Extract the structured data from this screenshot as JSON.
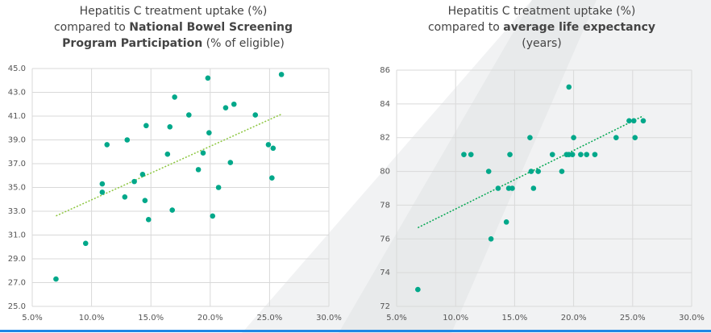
{
  "chart_data": [
    {
      "type": "scatter",
      "title_lines": [
        [
          {
            "text": "Hepatitis C treatment uptake (%)",
            "bold": false
          }
        ],
        [
          {
            "text": "compared to ",
            "bold": false
          },
          {
            "text": "National Bowel Screening",
            "bold": true
          }
        ],
        [
          {
            "text": "Program Participation",
            "bold": true
          },
          {
            "text": " (% of eligible)",
            "bold": false
          }
        ]
      ],
      "x": [
        7.0,
        9.5,
        10.9,
        10.9,
        11.3,
        12.8,
        13.0,
        13.6,
        14.3,
        14.5,
        14.6,
        14.8,
        16.8,
        16.4,
        16.6,
        17.0,
        18.2,
        19.0,
        19.4,
        19.8,
        19.9,
        20.2,
        20.7,
        21.3,
        21.7,
        22.0,
        23.8,
        24.9,
        25.3,
        25.2,
        26.0
      ],
      "values": [
        27.3,
        30.3,
        34.6,
        35.3,
        38.6,
        34.2,
        39.0,
        35.5,
        36.1,
        33.9,
        40.2,
        32.3,
        33.1,
        37.8,
        40.1,
        42.6,
        41.1,
        36.5,
        37.9,
        44.2,
        39.6,
        32.6,
        35.0,
        41.7,
        37.1,
        42.0,
        41.1,
        38.6,
        38.3,
        35.8,
        44.5
      ],
      "color": "#00a88a",
      "trendline": true,
      "trend_color": "#8cc63f",
      "xlim": [
        5,
        30
      ],
      "ylim": [
        25,
        45
      ],
      "grid": true,
      "xticks": [
        {
          "value": 5,
          "label": "5.0%"
        },
        {
          "value": 10,
          "label": "10.0%"
        },
        {
          "value": 15,
          "label": "15.0%"
        },
        {
          "value": 20,
          "label": "20.0%"
        },
        {
          "value": 25,
          "label": "25.0%"
        },
        {
          "value": 30,
          "label": "30.0%"
        }
      ],
      "yticks": [
        {
          "value": 25,
          "label": "25.0"
        },
        {
          "value": 27,
          "label": "27.0"
        },
        {
          "value": 29,
          "label": "29.0"
        },
        {
          "value": 31,
          "label": "31.0"
        },
        {
          "value": 33,
          "label": "33.0"
        },
        {
          "value": 35,
          "label": "35.0"
        },
        {
          "value": 37,
          "label": "37.0"
        },
        {
          "value": 39,
          "label": "39.0"
        },
        {
          "value": 41,
          "label": "41.0"
        },
        {
          "value": 43,
          "label": "43.0"
        },
        {
          "value": 45,
          "label": "45.0"
        }
      ]
    },
    {
      "type": "scatter",
      "title_lines": [
        [
          {
            "text": "Hepatitis C treatment uptake (%)",
            "bold": false
          }
        ],
        [
          {
            "text": "compared to ",
            "bold": false
          },
          {
            "text": "average life expectancy",
            "bold": true
          }
        ],
        [
          {
            "text": "(years)",
            "bold": false
          }
        ]
      ],
      "x": [
        6.8,
        10.7,
        11.3,
        12.8,
        13.0,
        13.6,
        14.3,
        14.5,
        14.6,
        14.8,
        16.3,
        16.4,
        16.6,
        17.0,
        18.2,
        19.0,
        19.4,
        19.6,
        19.6,
        19.9,
        20.0,
        20.6,
        21.1,
        21.8,
        23.6,
        24.7,
        25.1,
        25.2,
        25.9
      ],
      "values": [
        73,
        81,
        81,
        80,
        76,
        79,
        77,
        79,
        81,
        79,
        82,
        80,
        79,
        80,
        81,
        80,
        81,
        85,
        81,
        81,
        82,
        81,
        81,
        81,
        82,
        83,
        83,
        82,
        83
      ],
      "color": "#00a88a",
      "trendline": true,
      "trend_color": "#00a651",
      "xlim": [
        5,
        30
      ],
      "ylim": [
        72,
        86
      ],
      "grid": true,
      "xticks": [
        {
          "value": 5,
          "label": "5.0%"
        },
        {
          "value": 10,
          "label": "10.0%"
        },
        {
          "value": 15,
          "label": "15.0%"
        },
        {
          "value": 20,
          "label": "20.0%"
        },
        {
          "value": 25,
          "label": "25.0%"
        },
        {
          "value": 30,
          "label": "30.0%"
        }
      ],
      "yticks": [
        72,
        74,
        76,
        78,
        80,
        82,
        84,
        86
      ]
    }
  ]
}
